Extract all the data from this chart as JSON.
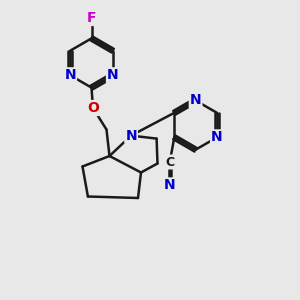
{
  "bg_color": "#e8e8e8",
  "bond_color": "#1a1a1a",
  "bond_width": 1.8,
  "atom_colors": {
    "N": "#0000cc",
    "O": "#cc0000",
    "F": "#cc00cc",
    "C": "#1a1a1a"
  },
  "font_size_atom": 10,
  "font_size_cn": 9
}
